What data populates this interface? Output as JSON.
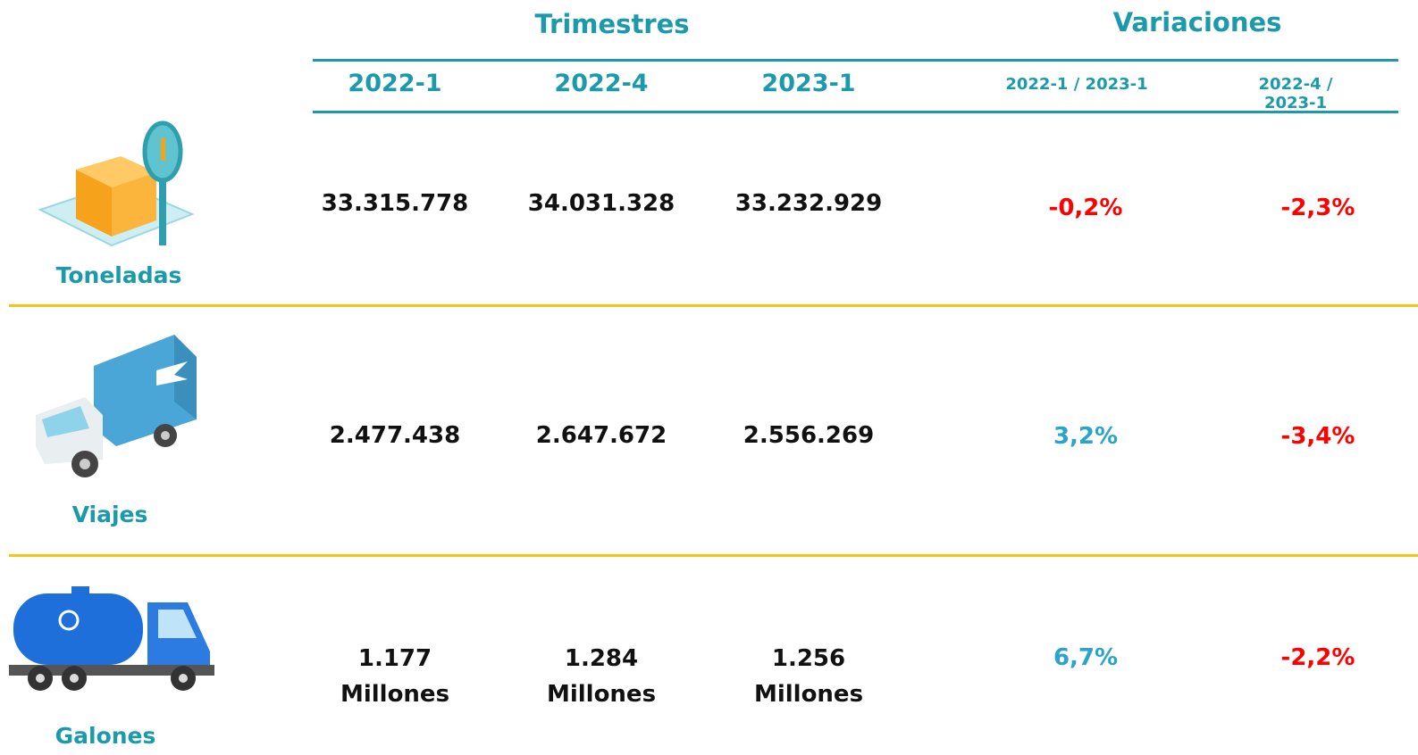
{
  "header": {
    "groups": [
      "Trimestres",
      "Variaciones"
    ],
    "columns": [
      "2022-1",
      "2022-4",
      "2023-1",
      "2022-1 / 2023-1",
      "2022-4 / 2023-1"
    ]
  },
  "table": {
    "rows": [
      {
        "label": "Toneladas",
        "values": [
          "33.315.778",
          "34.031.328",
          "33.232.929"
        ],
        "variations": [
          {
            "text": "-0,2%",
            "color": "#ff0000"
          },
          {
            "text": "-2,3%",
            "color": "#ff0000"
          }
        ]
      },
      {
        "label": "Viajes",
        "values": [
          "2.477.438",
          "2.647.672",
          "2.556.269"
        ],
        "variations": [
          {
            "text": "3,2%",
            "color": "#2aa5c8"
          },
          {
            "text": "-3,4%",
            "color": "#ff0000"
          }
        ]
      },
      {
        "label": "Galones",
        "values": [
          "1.177\nMillones",
          "1.284\nMillones",
          "1.256\nMillones"
        ],
        "variations": [
          {
            "text": "6,7%",
            "color": "#2aa5c8"
          },
          {
            "text": "-2,2%",
            "color": "#ff0000"
          }
        ]
      }
    ]
  }
}
